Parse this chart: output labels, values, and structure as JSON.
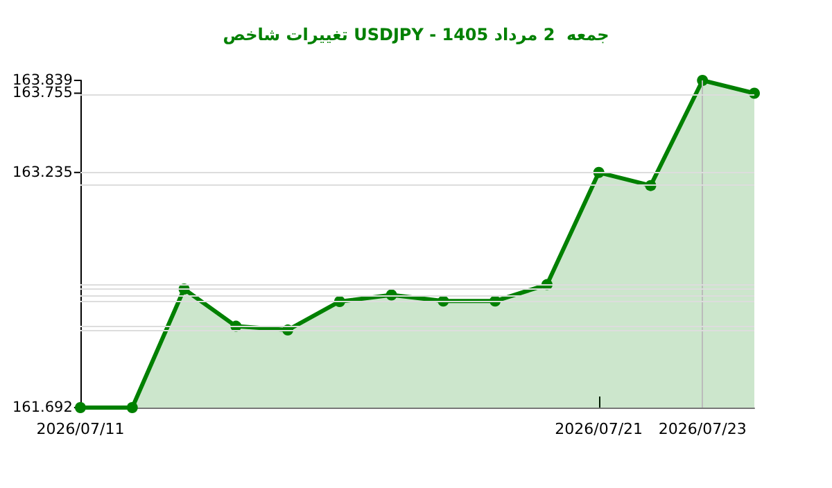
{
  "chart_data": {
    "type": "area",
    "title": "تغییرات شاخص USDJPY - جمعه  2 مرداد 1405",
    "x": [
      "2026-07-11",
      "2026-07-12",
      "2026-07-13",
      "2026-07-14",
      "2026-07-15",
      "2026-07-16",
      "2026-07-17",
      "2026-07-18",
      "2026-07-19",
      "2026-07-20",
      "2026-07-21",
      "2026-07-22",
      "2026-07-23",
      "2026-07-24"
    ],
    "series": [
      {
        "color": "#008000",
        "values": [
          161.692,
          161.692,
          162.47,
          162.226,
          162.201,
          162.388,
          162.431,
          162.391,
          162.391,
          162.499,
          163.235,
          163.149,
          163.839,
          163.755
        ]
      }
    ],
    "xlim": [
      "2026-07-11",
      "2026-07-24"
    ],
    "xticks": [
      {
        "value": "2026-07-11",
        "label": "2026/07/11"
      },
      {
        "value": "2026-07-21",
        "label": "2026/07/21"
      },
      {
        "value": "2026-07-23",
        "label": "2026/07/23"
      }
    ],
    "ylim": [
      161.692,
      163.839
    ],
    "yticks": [
      161.692,
      {
        "value": 162.201,
        "label": null
      },
      {
        "value": 162.226,
        "label": null
      },
      {
        "value": 162.388,
        "label": null
      },
      {
        "value": 162.391,
        "label": null
      },
      {
        "value": 162.431,
        "label": null
      },
      {
        "value": 162.47,
        "label": null
      },
      {
        "value": 162.499,
        "label": null
      },
      {
        "value": 163.149,
        "label": null
      },
      163.235,
      163.755,
      163.839
    ],
    "ref_lines": [
      {
        "axis": "x",
        "value": "2026-07-23",
        "color": "#bbbbbb"
      }
    ],
    "grid": "y",
    "marker": "circle",
    "line_style": "solid"
  }
}
